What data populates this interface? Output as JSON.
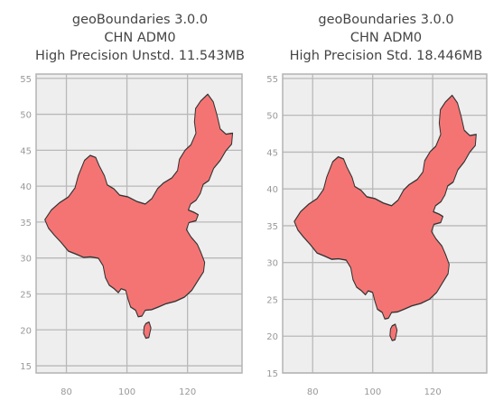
{
  "colors": {
    "background": "#ffffff",
    "plot_area": "#eeeeee",
    "grid": "#b9b9b9",
    "frame": "#b3b3b3",
    "fill": "#f47474",
    "outline": "#333333",
    "title_text": "#444444",
    "tick_text": "#999999"
  },
  "panels": [
    {
      "title_lines": [
        "geoBoundaries 3.0.0",
        "CHN ADM0",
        "High Precision Unstd. 11.543MB"
      ],
      "x_ticks": [
        "80",
        "100",
        "120"
      ],
      "y_ticks": [
        "15",
        "20",
        "25",
        "30",
        "35",
        "40",
        "45",
        "50",
        "55"
      ]
    },
    {
      "title_lines": [
        "geoBoundaries 3.0.0",
        "CHN ADM0",
        "High Precision Std. 18.446MB"
      ],
      "x_ticks": [
        "80",
        "100",
        "120"
      ],
      "y_ticks": [
        "15",
        "20",
        "25",
        "30",
        "35",
        "40",
        "45",
        "50",
        "55"
      ]
    }
  ],
  "chart_data": [
    {
      "type": "map",
      "region": "China (CHN) ADM0 boundary",
      "x_unit": "longitude (degrees E)",
      "y_unit": "latitude (degrees N)",
      "xlim": [
        70,
        138
      ],
      "ylim": [
        14,
        55.6
      ],
      "x_ticks": [
        80,
        100,
        120
      ],
      "y_ticks": [
        15,
        20,
        25,
        30,
        35,
        40,
        45,
        50,
        55
      ],
      "grid": true
    },
    {
      "type": "map",
      "region": "China (CHN) ADM0 boundary",
      "x_unit": "longitude (degrees E)",
      "y_unit": "latitude (degrees N)",
      "xlim": [
        70,
        138
      ],
      "ylim": [
        15,
        55.6
      ],
      "x_ticks": [
        80,
        100,
        120
      ],
      "y_ticks": [
        15,
        20,
        25,
        30,
        35,
        40,
        45,
        50,
        55
      ],
      "grid": true
    }
  ]
}
